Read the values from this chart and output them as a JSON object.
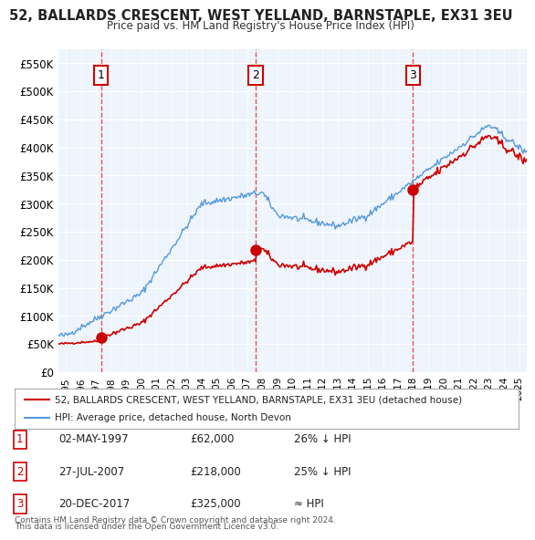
{
  "title": "52, BALLARDS CRESCENT, WEST YELLAND, BARNSTAPLE, EX31 3EU",
  "subtitle": "Price paid vs. HM Land Registry's House Price Index (HPI)",
  "ylabel_ticks": [
    "£0",
    "£50K",
    "£100K",
    "£150K",
    "£200K",
    "£250K",
    "£300K",
    "£350K",
    "£400K",
    "£450K",
    "£500K",
    "£550K"
  ],
  "ytick_values": [
    0,
    50000,
    100000,
    150000,
    200000,
    250000,
    300000,
    350000,
    400000,
    450000,
    500000,
    550000
  ],
  "ylim": [
    0,
    575000
  ],
  "xlim_start": 1994.5,
  "xlim_end": 2025.5,
  "sales": [
    {
      "date": 1997.33,
      "price": 62000,
      "label": "1"
    },
    {
      "date": 2007.57,
      "price": 218000,
      "label": "2"
    },
    {
      "date": 2017.97,
      "price": 325000,
      "label": "3"
    }
  ],
  "sale_color": "#cc0000",
  "hpi_color": "#5599dd",
  "vline_color": "#dd4444",
  "bg_color": "#eef4fb",
  "plot_bg": "#eef4fb",
  "legend_line1": "52, BALLARDS CRESCENT, WEST YELLAND, BARNSTAPLE, EX31 3EU (detached house)",
  "legend_line2": "HPI: Average price, detached house, North Devon",
  "table_rows": [
    {
      "num": "1",
      "date": "02-MAY-1997",
      "price": "£62,000",
      "hpi": "26% ↓ HPI"
    },
    {
      "num": "2",
      "date": "27-JUL-2007",
      "price": "£218,000",
      "hpi": "25% ↓ HPI"
    },
    {
      "num": "3",
      "date": "20-DEC-2017",
      "price": "£325,000",
      "hpi": "≈ HPI"
    }
  ],
  "footnote1": "Contains HM Land Registry data © Crown copyright and database right 2024.",
  "footnote2": "This data is licensed under the Open Government Licence v3.0.",
  "xtick_years": [
    1995,
    1996,
    1997,
    1998,
    1999,
    2000,
    2001,
    2002,
    2003,
    2004,
    2005,
    2006,
    2007,
    2008,
    2009,
    2010,
    2011,
    2012,
    2013,
    2014,
    2015,
    2016,
    2017,
    2018,
    2019,
    2020,
    2021,
    2022,
    2023,
    2024,
    2025
  ]
}
